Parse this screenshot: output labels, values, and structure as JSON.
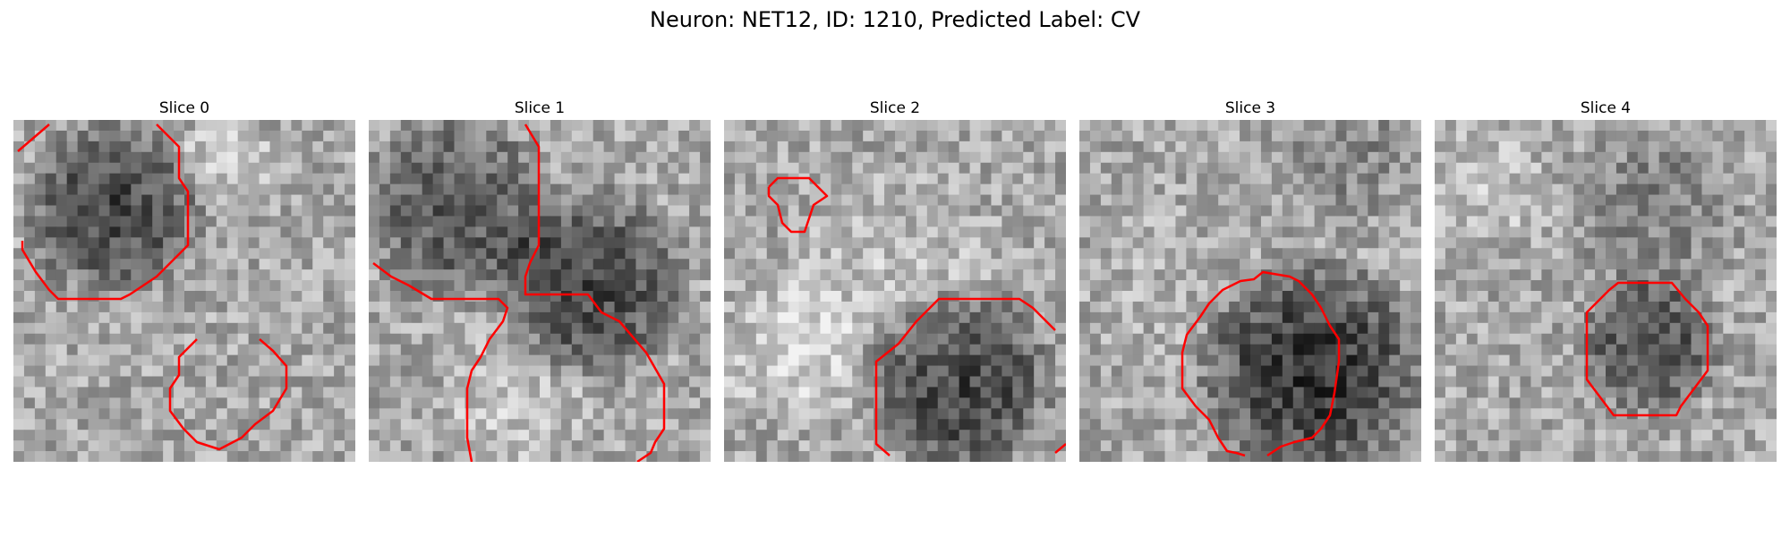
{
  "figure": {
    "title": "Neuron: NET12, ID: 1210, Predicted Label: CV"
  },
  "colors": {
    "contour": "#ff0000",
    "background": "#ffffff"
  },
  "image_description_kind": "grayscale microscopy patches with red segmentation contours",
  "panels": [
    {
      "title": "Slice 0"
    },
    {
      "title": "Slice 1"
    },
    {
      "title": "Slice 2"
    },
    {
      "title": "Slice 3"
    },
    {
      "title": "Slice 4"
    }
  ]
}
